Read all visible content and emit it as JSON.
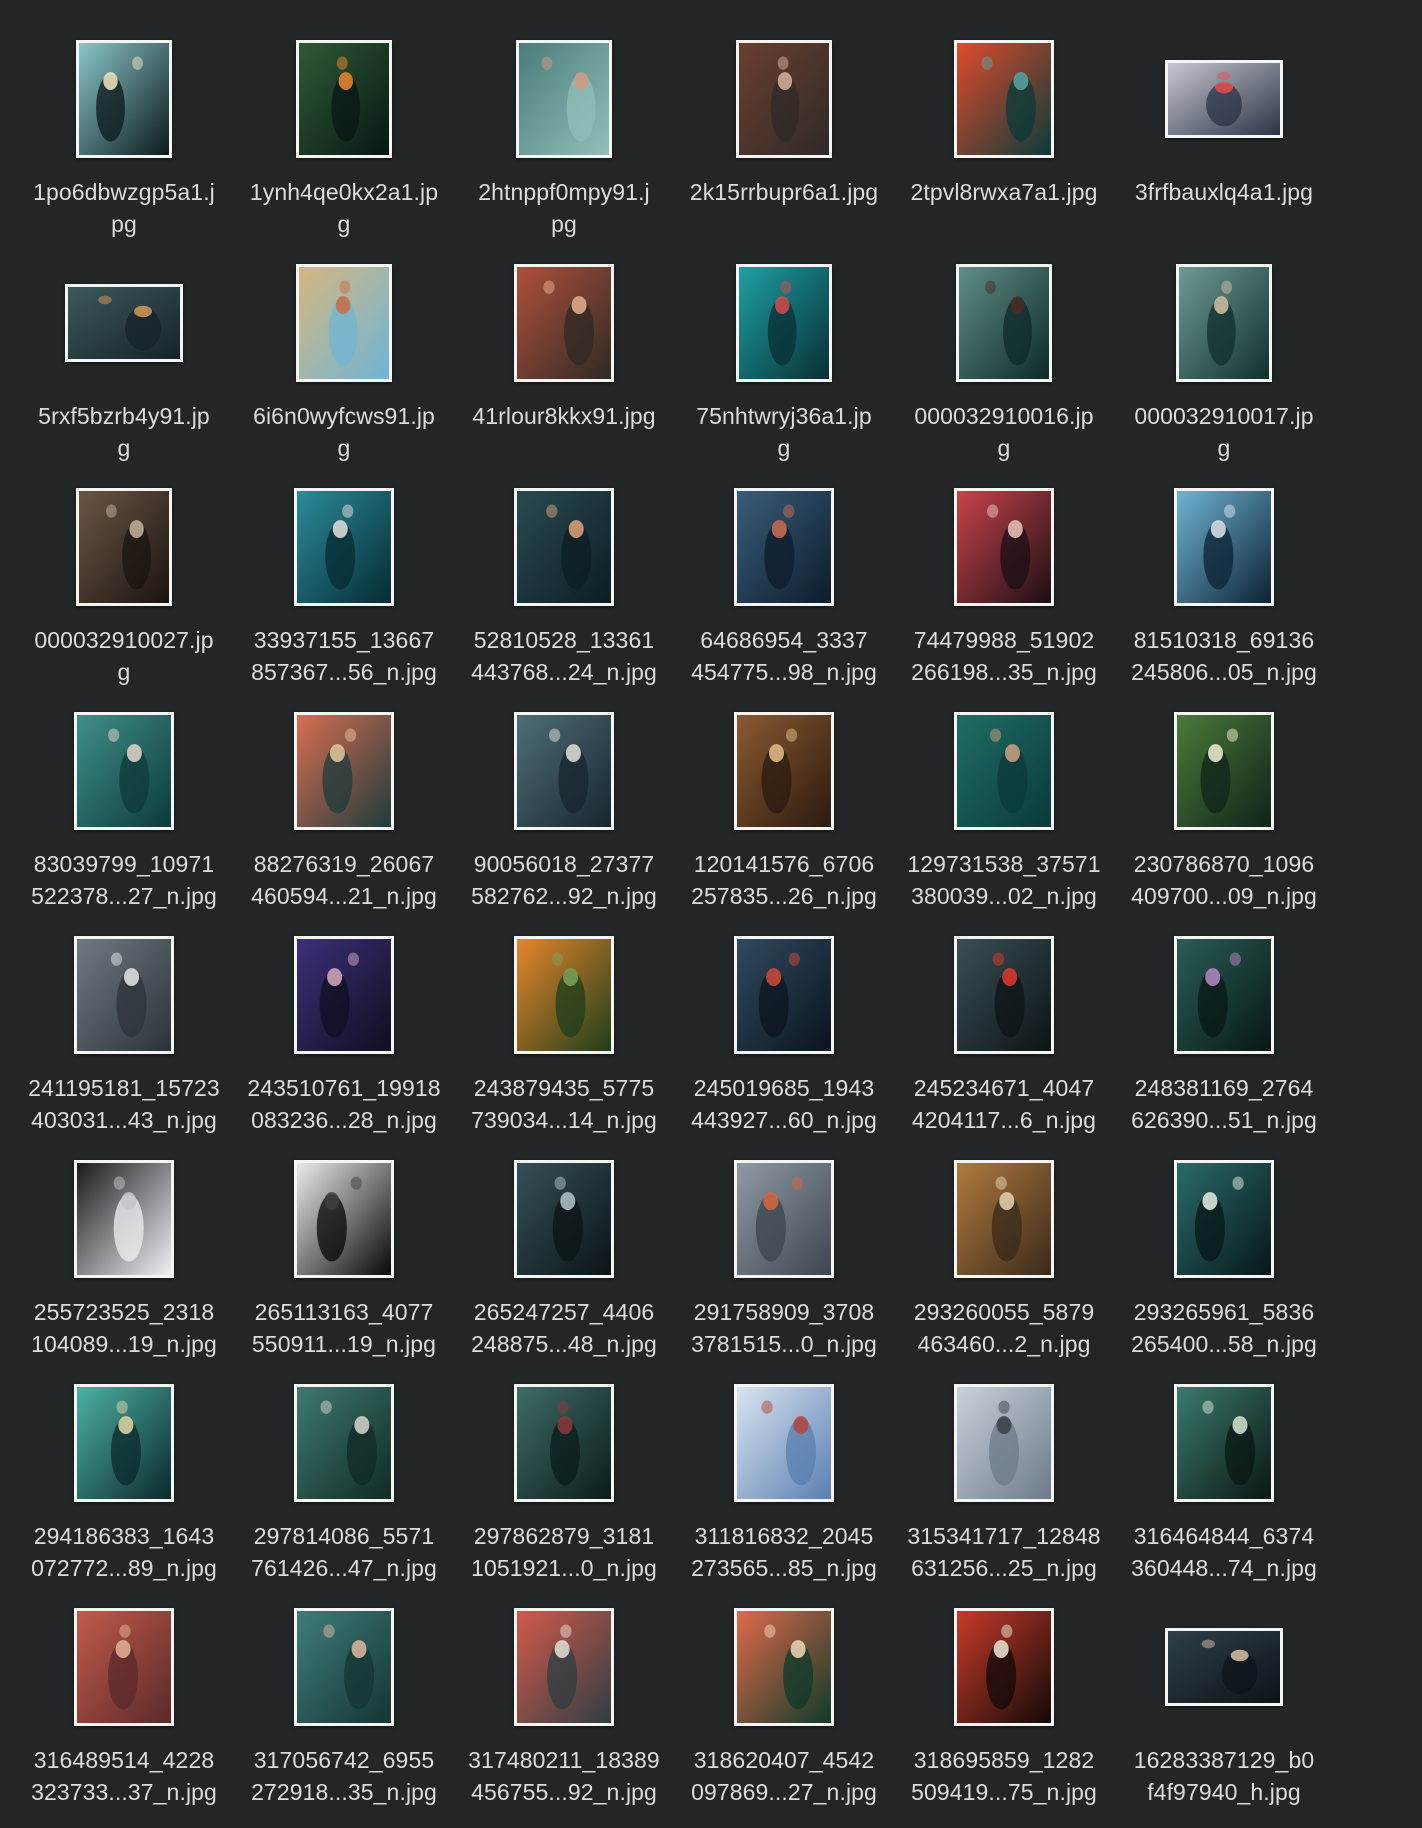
{
  "files": [
    {
      "name": [
        "1po6dbwzgp5a1.j",
        "pg"
      ],
      "shape": "portrait",
      "colors": [
        "#0b1a1c",
        "#8ac6c9",
        "#f4e7c2"
      ]
    },
    {
      "name": [
        "1ynh4qe0kx2a1.jp",
        "g"
      ],
      "shape": "portrait",
      "colors": [
        "#081714",
        "#2f5a36",
        "#f08a32"
      ]
    },
    {
      "name": [
        "2htnppf0mpy91.j",
        "pg"
      ],
      "shape": "portrait",
      "colors": [
        "#8fc0b8",
        "#4c7c7a",
        "#d59a83"
      ]
    },
    {
      "name": [
        "2k15rrbupr6a1.jpg"
      ],
      "shape": "portrait",
      "colors": [
        "#2f2a28",
        "#6a3f2f",
        "#d8b3a0"
      ]
    },
    {
      "name": [
        "2tpvl8rwxa7a1.jpg"
      ],
      "shape": "squareish",
      "colors": [
        "#0a3b3a",
        "#e14a2a",
        "#5ba7a7"
      ]
    },
    {
      "name": [
        "3frfbauxlq4a1.jpg"
      ],
      "shape": "landscape",
      "colors": [
        "#2a3346",
        "#c7c7cf",
        "#e54e4e"
      ]
    },
    {
      "name": [
        "5rxf5bzrb4y91.jp",
        "g"
      ],
      "shape": "landscape",
      "colors": [
        "#16222a",
        "#3c5a5a",
        "#d89a57"
      ]
    },
    {
      "name": [
        "6i6n0wyfcws91.jp",
        "g"
      ],
      "shape": "portrait",
      "colors": [
        "#6fb5d6",
        "#d6b680",
        "#c76d43"
      ]
    },
    {
      "name": [
        "41rlour8kkx91.jpg"
      ],
      "shape": "squareish",
      "colors": [
        "#2f2a26",
        "#b0503a",
        "#e7b28e"
      ]
    },
    {
      "name": [
        "75nhtwryj36a1.jp",
        "g"
      ],
      "shape": "portrait",
      "colors": [
        "#082f35",
        "#1ea0a4",
        "#d64b4b"
      ]
    },
    {
      "name": [
        "000032910016.jp",
        "g"
      ],
      "shape": "portrait",
      "colors": [
        "#0d2a27",
        "#5f8e86",
        "#4a2c24"
      ]
    },
    {
      "name": [
        "000032910017.jp",
        "g"
      ],
      "shape": "portrait",
      "colors": [
        "#10302d",
        "#6e9b93",
        "#d7c2a4"
      ]
    },
    {
      "name": [
        "000032910027.jp",
        "g"
      ],
      "shape": "portrait",
      "colors": [
        "#1a1410",
        "#6b5645",
        "#c6b39b"
      ]
    },
    {
      "name": [
        "33937155_13667",
        "857367...56_n.jpg"
      ],
      "shape": "squareish",
      "colors": [
        "#062b33",
        "#2b8b9a",
        "#e8e4df"
      ]
    },
    {
      "name": [
        "52810528_13361",
        "443768...24_n.jpg"
      ],
      "shape": "squareish",
      "colors": [
        "#0b1e24",
        "#2a4a52",
        "#e0a37b"
      ]
    },
    {
      "name": [
        "64686954_3337",
        "454775...98_n.jpg"
      ],
      "shape": "squareish",
      "colors": [
        "#0c1c2c",
        "#3a5d7a",
        "#d06e52"
      ]
    },
    {
      "name": [
        "74479988_51902",
        "266198...35_n.jpg"
      ],
      "shape": "squareish",
      "colors": [
        "#1b0f14",
        "#c9434a",
        "#f0c8bd"
      ]
    },
    {
      "name": [
        "81510318_69136",
        "245806...05_n.jpg"
      ],
      "shape": "squareish",
      "colors": [
        "#0c2234",
        "#6fb4d4",
        "#dde6ea"
      ]
    },
    {
      "name": [
        "83039799_10971",
        "522378...27_n.jpg"
      ],
      "shape": "squareish",
      "colors": [
        "#0d3a3c",
        "#3f8f8a",
        "#e6d7c9"
      ]
    },
    {
      "name": [
        "88276319_26067",
        "460594...21_n.jpg"
      ],
      "shape": "squareish",
      "colors": [
        "#1f3b3c",
        "#d86e52",
        "#e8c89a"
      ]
    },
    {
      "name": [
        "90056018_27377",
        "582762...92_n.jpg"
      ],
      "shape": "squareish",
      "colors": [
        "#17262e",
        "#4e6e78",
        "#e5e2da"
      ]
    },
    {
      "name": [
        "120141576_6706",
        "257835...26_n.jpg"
      ],
      "shape": "squareish",
      "colors": [
        "#2b1a0f",
        "#8a5a30",
        "#e6c28c"
      ]
    },
    {
      "name": [
        "129731538_37571",
        "380039...02_n.jpg"
      ],
      "shape": "squareish",
      "colors": [
        "#0b3a3a",
        "#1f6d66",
        "#d2a27f"
      ]
    },
    {
      "name": [
        "230786870_1096",
        "409700...09_n.jpg"
      ],
      "shape": "squareish",
      "colors": [
        "#0f2419",
        "#4a7a3a",
        "#f3f1d2"
      ]
    },
    {
      "name": [
        "241195181_15723",
        "403031...43_n.jpg"
      ],
      "shape": "squareish",
      "colors": [
        "#2c3338",
        "#6f7a82",
        "#e8e8e8"
      ]
    },
    {
      "name": [
        "243510761_19918",
        "083236...28_n.jpg"
      ],
      "shape": "squareish",
      "colors": [
        "#0d1020",
        "#3d2f7a",
        "#d9a9c0"
      ]
    },
    {
      "name": [
        "243879435_5775",
        "739034...14_n.jpg"
      ],
      "shape": "squareish",
      "colors": [
        "#1f3d1b",
        "#e6862a",
        "#7da35a"
      ]
    },
    {
      "name": [
        "245019685_1943",
        "443927...60_n.jpg"
      ],
      "shape": "squareish",
      "colors": [
        "#0b141e",
        "#2f4a5f",
        "#d24a3a"
      ]
    },
    {
      "name": [
        "245234671_4047",
        "4204117...6_n.jpg"
      ],
      "shape": "squareish",
      "colors": [
        "#0c1416",
        "#3a4f55",
        "#e23a2f"
      ]
    },
    {
      "name": [
        "248381169_2764",
        "626390...51_n.jpg"
      ],
      "shape": "squareish",
      "colors": [
        "#071816",
        "#2a5d55",
        "#b98bc7"
      ]
    },
    {
      "name": [
        "255723525_2318",
        "104089...19_n.jpg"
      ],
      "shape": "squareish",
      "colors": [
        "#eef0f2",
        "#1a1a1f",
        "#c6c6cc"
      ]
    },
    {
      "name": [
        "265113163_4077",
        "550911...19_n.jpg"
      ],
      "shape": "squareish",
      "colors": [
        "#060808",
        "#e9ecec",
        "#3a3f3f"
      ]
    },
    {
      "name": [
        "265247257_4406",
        "248875...48_n.jpg"
      ],
      "shape": "squareish",
      "colors": [
        "#0b1416",
        "#355157",
        "#b6c8cb"
      ]
    },
    {
      "name": [
        "291758909_3708",
        "3781515...0_n.jpg"
      ],
      "shape": "squareish",
      "colors": [
        "#3b4650",
        "#8f9aa3",
        "#d9663a"
      ]
    },
    {
      "name": [
        "293260055_5879",
        "463460...2_n.jpg"
      ],
      "shape": "squareish",
      "colors": [
        "#3a2a1a",
        "#b07a3f",
        "#e8d6b2"
      ]
    },
    {
      "name": [
        "293265961_5836",
        "265400...58_n.jpg"
      ],
      "shape": "squareish",
      "colors": [
        "#071718",
        "#2a6b6b",
        "#e8f2ea"
      ]
    },
    {
      "name": [
        "294186383_1643",
        "072772...89_n.jpg"
      ],
      "shape": "squareish",
      "colors": [
        "#0b2a2c",
        "#4db0a4",
        "#e3d9a8"
      ]
    },
    {
      "name": [
        "297814086_5571",
        "761426...47_n.jpg"
      ],
      "shape": "squareish",
      "colors": [
        "#102a26",
        "#3e7a6f",
        "#d9d7cf"
      ]
    },
    {
      "name": [
        "297862879_3181",
        "1051921...0_n.jpg"
      ],
      "shape": "squareish",
      "colors": [
        "#0a1c1b",
        "#3f6c66",
        "#8c3a3a"
      ]
    },
    {
      "name": [
        "311816832_2045",
        "273565...85_n.jpg"
      ],
      "shape": "squareish",
      "colors": [
        "#5a7fb2",
        "#d9e4ef",
        "#b2443a"
      ]
    },
    {
      "name": [
        "315341717_12848",
        "631256...25_n.jpg"
      ],
      "shape": "squareish",
      "colors": [
        "#6c7a8a",
        "#c9d2db",
        "#3a3f48"
      ]
    },
    {
      "name": [
        "316464844_6374",
        "360448...74_n.jpg"
      ],
      "shape": "squareish",
      "colors": [
        "#0a1714",
        "#3b7a6d",
        "#d9e6d6"
      ]
    },
    {
      "name": [
        "316489514_4228",
        "323733...37_n.jpg"
      ],
      "shape": "squareish",
      "colors": [
        "#5a2a2a",
        "#c25a4a",
        "#e8b49a"
      ]
    },
    {
      "name": [
        "317056742_6955",
        "272918...35_n.jpg"
      ],
      "shape": "squareish",
      "colors": [
        "#143534",
        "#3f7d7a",
        "#e2b9a2"
      ]
    },
    {
      "name": [
        "317480211_18389",
        "456755...92_n.jpg"
      ],
      "shape": "squareish",
      "colors": [
        "#2f3d44",
        "#d45a4a",
        "#e9e1d6"
      ]
    },
    {
      "name": [
        "318620407_4542",
        "097869...27_n.jpg"
      ],
      "shape": "squareish",
      "colors": [
        "#0f3a2a",
        "#e06a4a",
        "#f3d9b8"
      ]
    },
    {
      "name": [
        "318695859_1282",
        "509419...75_n.jpg"
      ],
      "shape": "squareish",
      "colors": [
        "#120a08",
        "#c93a2a",
        "#f4e9d6"
      ]
    },
    {
      "name": [
        "16283387129_b0",
        "f4f97940_h.jpg"
      ],
      "shape": "landscape",
      "colors": [
        "#0c1418",
        "#2f3f48",
        "#d9c2a6"
      ]
    }
  ]
}
